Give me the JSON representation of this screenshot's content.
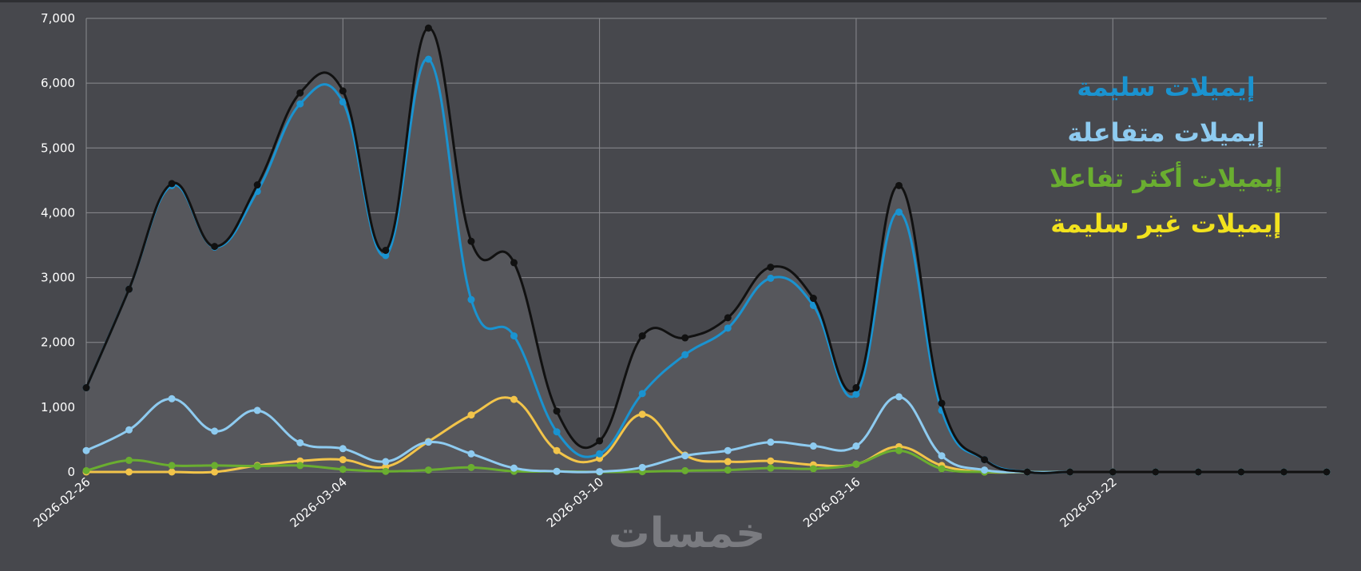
{
  "chart_data": {
    "type": "line",
    "x": [
      "2026-02-26",
      "2026-02-27",
      "2026-02-28",
      "2026-03-01",
      "2026-03-02",
      "2026-03-03",
      "2026-03-04",
      "2026-03-05",
      "2026-03-06",
      "2026-03-07",
      "2026-03-08",
      "2026-03-09",
      "2026-03-10",
      "2026-03-11",
      "2026-03-12",
      "2026-03-13",
      "2026-03-14",
      "2026-03-15",
      "2026-03-16",
      "2026-03-17",
      "2026-03-18",
      "2026-03-19",
      "2026-03-20",
      "2026-03-21",
      "2026-03-22",
      "2026-03-23",
      "2026-03-24",
      "2026-03-25",
      "2026-03-26",
      "2026-03-27"
    ],
    "xticks": [
      "2026-02-26",
      "2026-03-04",
      "2026-03-10",
      "2026-03-16",
      "2026-03-22"
    ],
    "ylim": [
      0,
      7000
    ],
    "yticks": [
      0,
      {
        "value": 1000,
        "label": "1,000"
      },
      {
        "value": 2000,
        "label": "2,000"
      },
      {
        "value": 3000,
        "label": "3,000"
      },
      {
        "value": 4000,
        "label": "4,000"
      },
      {
        "value": 5000,
        "label": "5,000"
      },
      {
        "value": 6000,
        "label": "6,000"
      },
      {
        "value": 7000,
        "label": "7,000"
      }
    ],
    "grid": true,
    "series": [
      {
        "color": "#111111",
        "fill": "#56575c",
        "values": [
          1300,
          2820,
          4450,
          3480,
          4430,
          5850,
          5880,
          3420,
          6850,
          3560,
          3230,
          940,
          480,
          2100,
          2070,
          2380,
          3160,
          2680,
          1300,
          4420,
          1060,
          190,
          0,
          0,
          0,
          0,
          0,
          0,
          0,
          0
        ]
      },
      {
        "name": "إيميلات سليمة",
        "color": "#1a93d0",
        "values": [
          1300,
          2820,
          4420,
          3470,
          4330,
          5680,
          5710,
          3340,
          6370,
          2660,
          2100,
          620,
          280,
          1210,
          1810,
          2220,
          2990,
          2570,
          1200,
          4010,
          950,
          190,
          0,
          0,
          0,
          0,
          0,
          0,
          0,
          0
        ]
      },
      {
        "name": "إيميلات متفاعلة",
        "color": "#8ecbf0",
        "values": [
          330,
          650,
          1130,
          630,
          950,
          450,
          360,
          160,
          460,
          280,
          60,
          10,
          5,
          70,
          250,
          330,
          460,
          400,
          400,
          1160,
          250,
          30,
          0,
          0,
          0,
          0,
          0,
          0,
          0,
          0
        ]
      },
      {
        "name": "إيميلات أكثر تفاعلا",
        "color": "#6aae30",
        "values": [
          20,
          180,
          100,
          100,
          90,
          100,
          40,
          10,
          30,
          70,
          10,
          10,
          0,
          5,
          20,
          30,
          60,
          50,
          120,
          330,
          50,
          0,
          0,
          0,
          0,
          0,
          0,
          0,
          0,
          0
        ]
      },
      {
        "name": "إيميلات غير سليمة",
        "color": "#f2c44a",
        "legend_color": "#f2e21e",
        "values": [
          0,
          0,
          0,
          0,
          100,
          170,
          190,
          80,
          470,
          880,
          1120,
          330,
          210,
          890,
          260,
          160,
          170,
          110,
          120,
          390,
          100,
          0,
          0,
          0,
          0,
          0,
          0,
          0,
          0,
          0
        ]
      }
    ],
    "watermark": "خمسات"
  }
}
